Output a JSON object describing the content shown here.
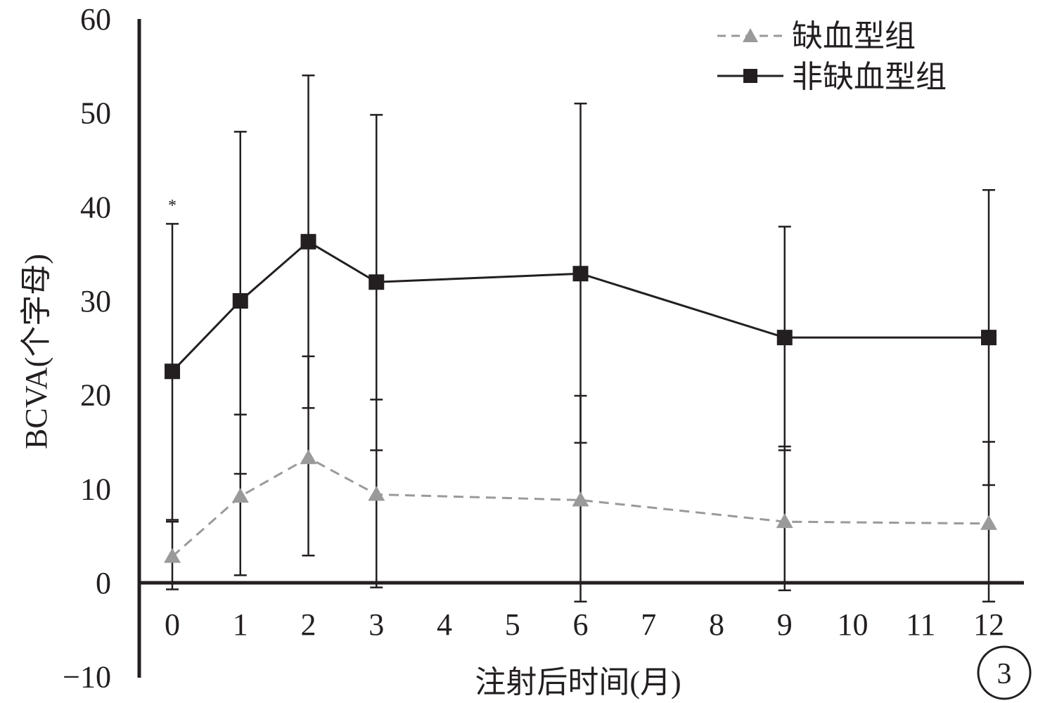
{
  "chart_data": {
    "type": "line",
    "x": [
      0,
      1,
      2,
      3,
      6,
      9,
      12
    ],
    "ylim": [
      -10,
      60
    ],
    "xlim": [
      0,
      12
    ],
    "yticks": [
      "60",
      "50",
      "40",
      "30",
      "20",
      "10",
      "0",
      "−10"
    ],
    "xticks": [
      "0",
      "1",
      "2",
      "3",
      "4",
      "5",
      "6",
      "7",
      "8",
      "9",
      "10",
      "11",
      "12"
    ],
    "xlabel": "注射后时间(月)",
    "ylabel": "BCVA(个字母)",
    "legend_position": "top-right",
    "series": [
      {
        "name": "缺血型组",
        "marker": "triangle",
        "line": "dashed",
        "color": "#9a9a9a",
        "values": [
          2.8,
          9.2,
          13.3,
          9.4,
          8.8,
          6.5,
          6.3
        ],
        "error_low": [
          -0.7,
          0.8,
          2.9,
          -0.5,
          -2.0,
          -0.8,
          -2.0
        ],
        "error_high": [
          6.5,
          17.9,
          24.1,
          19.5,
          19.9,
          14.5,
          15.0
        ]
      },
      {
        "name": "非缺血型组",
        "marker": "square",
        "line": "solid",
        "color": "#231f20",
        "values": [
          22.5,
          30.0,
          36.3,
          32.0,
          32.9,
          26.1,
          26.1
        ],
        "error_low": [
          6.7,
          11.6,
          18.6,
          14.1,
          14.9,
          14.1,
          10.4
        ],
        "error_high": [
          38.2,
          48.0,
          54.0,
          49.8,
          51.0,
          37.9,
          41.8
        ]
      }
    ],
    "annotations": [
      "*"
    ],
    "panel_label": "3"
  }
}
